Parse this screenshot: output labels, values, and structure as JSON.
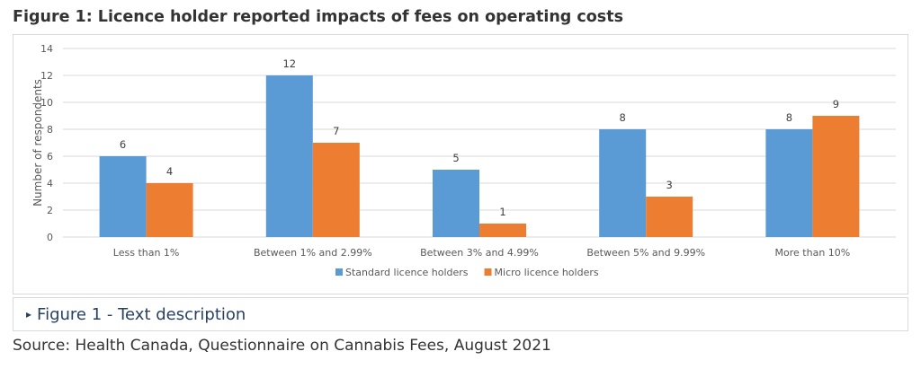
{
  "figure": {
    "title": "Figure 1: Licence holder reported impacts of fees on operating costs",
    "details_label": "Figure 1 - Text description",
    "source": "Source: Health Canada, Questionnaire on Cannabis Fees, August 2021"
  },
  "chart_data": {
    "type": "bar",
    "title": "",
    "ylabel": "Number of respondents",
    "xlabel": "",
    "ylim": [
      0,
      14
    ],
    "yticks": [
      0,
      2,
      4,
      6,
      8,
      10,
      12,
      14
    ],
    "grid": true,
    "legend_position": "bottom",
    "categories": [
      "Less than 1%",
      "Between 1% and 2.99%",
      "Between 3% and 4.99%",
      "Between 5% and 9.99%",
      "More than 10%"
    ],
    "series": [
      {
        "name": "Standard licence holders",
        "color": "#5b9bd5",
        "values": [
          6,
          12,
          5,
          8,
          8
        ]
      },
      {
        "name": "Micro licence holders",
        "color": "#ed7d31",
        "values": [
          4,
          7,
          1,
          3,
          9
        ]
      }
    ]
  }
}
